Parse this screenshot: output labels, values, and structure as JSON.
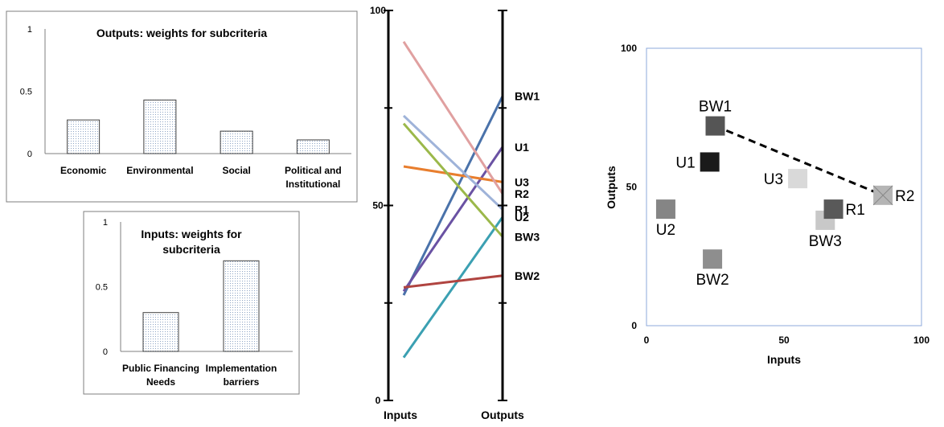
{
  "colors": {
    "frame": "#7f7f7f",
    "bar_fill": "#dbe5f1",
    "axis": "#000000",
    "plot_border": "#8eaadb"
  },
  "chart_data": [
    {
      "id": "outputs_weights",
      "type": "bar",
      "title": "Outputs: weights for subcriteria",
      "categories": [
        "Economic",
        "Environmental",
        "Social",
        "Political and\nInstitutional"
      ],
      "values": [
        0.27,
        0.43,
        0.18,
        0.11
      ],
      "ylim": [
        0,
        1
      ],
      "yticks": [
        "0",
        "0.5",
        "1"
      ],
      "ytick_values": [
        0,
        0.5,
        1
      ],
      "grid": false,
      "legend": "none"
    },
    {
      "id": "inputs_weights",
      "type": "bar",
      "title": "Inputs: weights for\nsubcriteria",
      "categories": [
        "Public Financing\nNeeds",
        "Implementation\nbarriers"
      ],
      "values": [
        0.3,
        0.7
      ],
      "ylim": [
        0,
        1
      ],
      "yticks": [
        "0",
        "0.5",
        "1"
      ],
      "ytick_values": [
        0,
        0.5,
        1
      ],
      "grid": false,
      "legend": "none"
    },
    {
      "id": "parallel_axes",
      "type": "line",
      "axes": [
        "Inputs",
        "Outputs"
      ],
      "ylim": [
        0,
        100
      ],
      "yticks": [
        "0",
        "50",
        "100"
      ],
      "ytick_values": [
        0,
        50,
        100
      ],
      "series": [
        {
          "name": "BW1",
          "color": "#4a72aa",
          "values": [
            27,
            78
          ]
        },
        {
          "name": "U1",
          "color": "#6a52a3",
          "values": [
            28,
            65
          ]
        },
        {
          "name": "U3",
          "color": "#e87e2e",
          "values": [
            60,
            56
          ]
        },
        {
          "name": "R2",
          "color": "#e0a0a0",
          "values": [
            92,
            53
          ]
        },
        {
          "name": "R1",
          "color": "#9fb3d9",
          "values": [
            73,
            49
          ]
        },
        {
          "name": "U2",
          "color": "#3ba0b2",
          "values": [
            11,
            47
          ]
        },
        {
          "name": "BW3",
          "color": "#9bb84a",
          "values": [
            71,
            42
          ]
        },
        {
          "name": "BW2",
          "color": "#b04440",
          "values": [
            29,
            32
          ]
        }
      ],
      "legend": "labels at right axis"
    },
    {
      "id": "scatter_inputs_outputs",
      "type": "scatter",
      "xlabel": "Inputs",
      "ylabel": "Outputs",
      "xlim": [
        0,
        100
      ],
      "ylim": [
        0,
        100
      ],
      "xticks": [
        "0",
        "50",
        "100"
      ],
      "yticks": [
        "0",
        "50",
        "100"
      ],
      "tick_values": [
        0,
        50,
        100
      ],
      "grid": false,
      "points": [
        {
          "name": "BW1",
          "x": 25,
          "y": 72,
          "color": "#555555",
          "label_pos": "above"
        },
        {
          "name": "U1",
          "x": 23,
          "y": 59,
          "color": "#1a1a1a",
          "label_pos": "left"
        },
        {
          "name": "U3",
          "x": 55,
          "y": 53,
          "color": "#d9d9d9",
          "label_pos": "left"
        },
        {
          "name": "U2",
          "x": 7,
          "y": 42,
          "color": "#858585",
          "label_pos": "below"
        },
        {
          "name": "BW3",
          "x": 65,
          "y": 38,
          "color": "#c8c8c8",
          "label_pos": "below"
        },
        {
          "name": "R1",
          "x": 68,
          "y": 42,
          "color": "#595959",
          "label_pos": "right"
        },
        {
          "name": "R2",
          "x": 86,
          "y": 47,
          "color": "#b5b5b5",
          "label_pos": "right",
          "crossed": true
        },
        {
          "name": "BW2",
          "x": 24,
          "y": 24,
          "color": "#8e8e8e",
          "label_pos": "below"
        }
      ],
      "frontier": [
        "BW1",
        "R2"
      ],
      "legend": "none"
    }
  ]
}
